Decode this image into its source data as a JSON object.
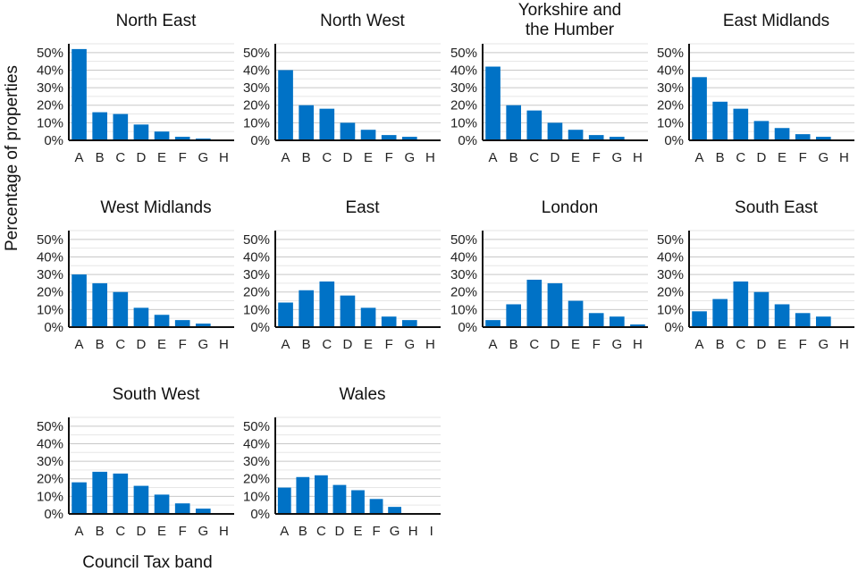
{
  "chart_data": {
    "type": "bar",
    "xlabel": "Council Tax band",
    "ylabel": "Percentage of properties",
    "ylim": [
      0,
      0.55
    ],
    "yticks": [
      0,
      0.1,
      0.2,
      0.3,
      0.4,
      0.5
    ],
    "ytick_labels": [
      "0%",
      "10%",
      "20%",
      "30%",
      "40%",
      "50%"
    ],
    "bar_color": "#0072c6",
    "grid": true,
    "panels": [
      {
        "title": "North East",
        "categories": [
          "A",
          "B",
          "C",
          "D",
          "E",
          "F",
          "G",
          "H"
        ],
        "values": [
          0.52,
          0.16,
          0.15,
          0.09,
          0.05,
          0.02,
          0.01,
          0.0
        ]
      },
      {
        "title": "North West",
        "categories": [
          "A",
          "B",
          "C",
          "D",
          "E",
          "F",
          "G",
          "H"
        ],
        "values": [
          0.4,
          0.2,
          0.18,
          0.1,
          0.06,
          0.03,
          0.02,
          0.0
        ]
      },
      {
        "title": "Yorkshire and the Humber",
        "title_lines": [
          "Yorkshire and",
          "the Humber"
        ],
        "categories": [
          "A",
          "B",
          "C",
          "D",
          "E",
          "F",
          "G",
          "H"
        ],
        "values": [
          0.42,
          0.2,
          0.17,
          0.1,
          0.06,
          0.03,
          0.02,
          0.0
        ]
      },
      {
        "title": "East Midlands",
        "categories": [
          "A",
          "B",
          "C",
          "D",
          "E",
          "F",
          "G",
          "H"
        ],
        "values": [
          0.36,
          0.22,
          0.18,
          0.11,
          0.07,
          0.035,
          0.02,
          0.0
        ]
      },
      {
        "title": "West Midlands",
        "categories": [
          "A",
          "B",
          "C",
          "D",
          "E",
          "F",
          "G",
          "H"
        ],
        "values": [
          0.3,
          0.25,
          0.2,
          0.11,
          0.07,
          0.04,
          0.02,
          0.0
        ]
      },
      {
        "title": "East",
        "categories": [
          "A",
          "B",
          "C",
          "D",
          "E",
          "F",
          "G",
          "H"
        ],
        "values": [
          0.14,
          0.21,
          0.26,
          0.18,
          0.11,
          0.06,
          0.04,
          0.0
        ]
      },
      {
        "title": "London",
        "categories": [
          "A",
          "B",
          "C",
          "D",
          "E",
          "F",
          "G",
          "H"
        ],
        "values": [
          0.04,
          0.13,
          0.27,
          0.25,
          0.15,
          0.08,
          0.06,
          0.015
        ]
      },
      {
        "title": "South East",
        "categories": [
          "A",
          "B",
          "C",
          "D",
          "E",
          "F",
          "G",
          "H"
        ],
        "values": [
          0.09,
          0.16,
          0.26,
          0.2,
          0.13,
          0.08,
          0.06,
          0.005
        ]
      },
      {
        "title": "South West",
        "categories": [
          "A",
          "B",
          "C",
          "D",
          "E",
          "F",
          "G",
          "H"
        ],
        "values": [
          0.18,
          0.24,
          0.23,
          0.16,
          0.11,
          0.06,
          0.03,
          0.0
        ]
      },
      {
        "title": "Wales",
        "categories": [
          "A",
          "B",
          "C",
          "D",
          "E",
          "F",
          "G",
          "H",
          "I"
        ],
        "values": [
          0.15,
          0.21,
          0.22,
          0.165,
          0.135,
          0.085,
          0.04,
          0.005,
          0.0
        ]
      }
    ]
  }
}
